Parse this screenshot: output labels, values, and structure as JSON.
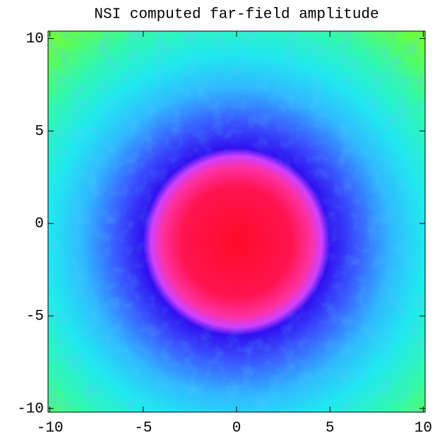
{
  "chart_data": {
    "type": "density",
    "title": "NSI computed far-field amplitude",
    "xlim": [
      -10.1,
      10.1
    ],
    "ylim": [
      -10.2,
      10.4
    ],
    "xticks": [
      -10,
      -5,
      0,
      5,
      10
    ],
    "yticks": [
      -10,
      -5,
      0,
      5,
      10
    ]
  }
}
